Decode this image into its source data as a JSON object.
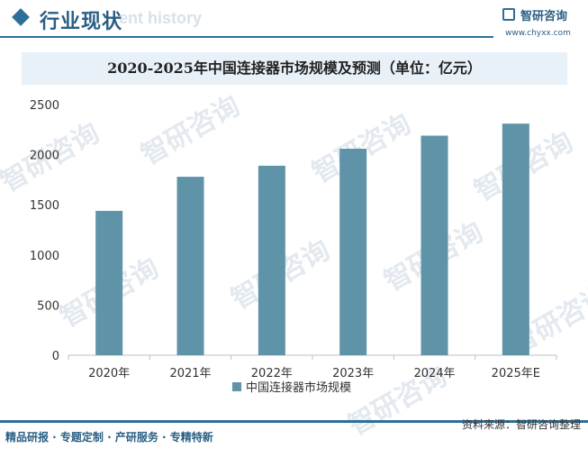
{
  "header": {
    "title": "行业现状",
    "watermark_text": "ent history",
    "logo_text": "智研咨询",
    "logo_url": "www.chyxx.com"
  },
  "watermark": "智研咨询",
  "chart_data": {
    "type": "bar",
    "title": "2020-2025年中国连接器市场规模及预测（单位：亿元）",
    "categories": [
      "2020年",
      "2021年",
      "2022年",
      "2023年",
      "2024年",
      "2025年E"
    ],
    "series": [
      {
        "name": "中国连接器市场规模",
        "values": [
          1440,
          1780,
          1890,
          2060,
          2190,
          2310
        ]
      }
    ],
    "yticks": [
      "0",
      "500",
      "1000",
      "1500",
      "2000",
      "2500"
    ],
    "ylim": [
      0,
      2500
    ],
    "xlabel": "",
    "ylabel": "",
    "grid": false,
    "legend_position": "bottom",
    "colors": {
      "bar": "#5f93a8",
      "axis": "#bfbfbf"
    }
  },
  "footer": {
    "left": "精品研报 · 专题定制 · 产研服务 · 专精特新",
    "right": "资料来源：智研咨询整理"
  }
}
